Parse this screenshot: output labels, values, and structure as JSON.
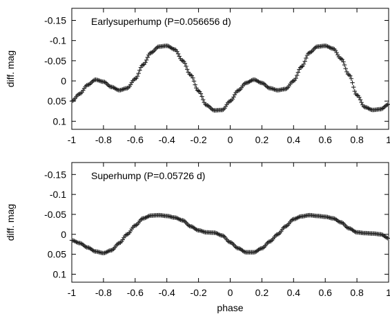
{
  "chart_data": [
    {
      "type": "scatter",
      "title": "Earlysuperhump (P=0.056656 d)",
      "xlabel": "",
      "ylabel": "diff. mag",
      "xlim": [
        -1,
        1
      ],
      "ylim": [
        0.12,
        -0.18
      ],
      "y_inverted": true,
      "x_ticks": [
        "-1",
        "-0.8",
        "-0.6",
        "-0.4",
        "-0.2",
        "0",
        "0.2",
        "0.4",
        "0.6",
        "0.8",
        "1"
      ],
      "y_ticks": [
        "-0.15",
        "-0.1",
        "-0.05",
        "0",
        "0.05",
        "0.1"
      ],
      "marker": "plus",
      "series": [
        {
          "x": [
            -1.0,
            -0.95,
            -0.9,
            -0.85,
            -0.8,
            -0.75,
            -0.7,
            -0.65,
            -0.6,
            -0.55,
            -0.5,
            -0.45,
            -0.4,
            -0.35,
            -0.3,
            -0.25,
            -0.2,
            -0.15,
            -0.1,
            -0.05,
            0.0,
            0.05,
            0.1,
            0.15,
            0.2,
            0.25,
            0.3,
            0.35,
            0.4,
            0.45,
            0.5,
            0.55,
            0.6,
            0.65,
            0.7,
            0.75,
            0.8,
            0.85,
            0.9,
            0.95,
            1.0
          ],
          "y": [
            0.05,
            0.032,
            0.01,
            -0.003,
            0.002,
            0.015,
            0.023,
            0.018,
            -0.005,
            -0.04,
            -0.07,
            -0.085,
            -0.087,
            -0.078,
            -0.05,
            -0.015,
            0.025,
            0.06,
            0.073,
            0.072,
            0.05,
            0.024,
            0.005,
            -0.003,
            0.005,
            0.018,
            0.023,
            0.02,
            0.0,
            -0.035,
            -0.07,
            -0.085,
            -0.087,
            -0.08,
            -0.055,
            -0.015,
            0.035,
            0.065,
            0.072,
            0.07,
            0.058
          ]
        }
      ]
    },
    {
      "type": "scatter",
      "title": "Superhump (P=0.05726 d)",
      "xlabel": "phase",
      "ylabel": "diff. mag",
      "xlim": [
        -1,
        1
      ],
      "ylim": [
        0.12,
        -0.18
      ],
      "y_inverted": true,
      "x_ticks": [
        "-1",
        "-0.8",
        "-0.6",
        "-0.4",
        "-0.2",
        "0",
        "0.2",
        "0.4",
        "0.6",
        "0.8",
        "1"
      ],
      "y_ticks": [
        "-0.15",
        "-0.1",
        "-0.05",
        "0",
        "0.05",
        "0.1"
      ],
      "marker": "plus",
      "series": [
        {
          "x": [
            -1.0,
            -0.95,
            -0.9,
            -0.85,
            -0.8,
            -0.75,
            -0.7,
            -0.65,
            -0.6,
            -0.55,
            -0.5,
            -0.45,
            -0.4,
            -0.35,
            -0.3,
            -0.25,
            -0.2,
            -0.15,
            -0.1,
            -0.05,
            0.0,
            0.05,
            0.1,
            0.15,
            0.2,
            0.25,
            0.3,
            0.35,
            0.4,
            0.45,
            0.5,
            0.55,
            0.6,
            0.65,
            0.7,
            0.75,
            0.8,
            0.85,
            0.9,
            0.95,
            1.0
          ],
          "y": [
            0.015,
            0.022,
            0.033,
            0.043,
            0.047,
            0.04,
            0.022,
            0.0,
            -0.022,
            -0.04,
            -0.047,
            -0.048,
            -0.046,
            -0.042,
            -0.035,
            -0.02,
            -0.01,
            -0.005,
            -0.004,
            0.003,
            0.02,
            0.035,
            0.045,
            0.045,
            0.035,
            0.018,
            0.0,
            -0.02,
            -0.038,
            -0.045,
            -0.048,
            -0.046,
            -0.044,
            -0.04,
            -0.03,
            -0.015,
            -0.005,
            -0.003,
            -0.002,
            0.0,
            0.01
          ]
        }
      ]
    }
  ]
}
